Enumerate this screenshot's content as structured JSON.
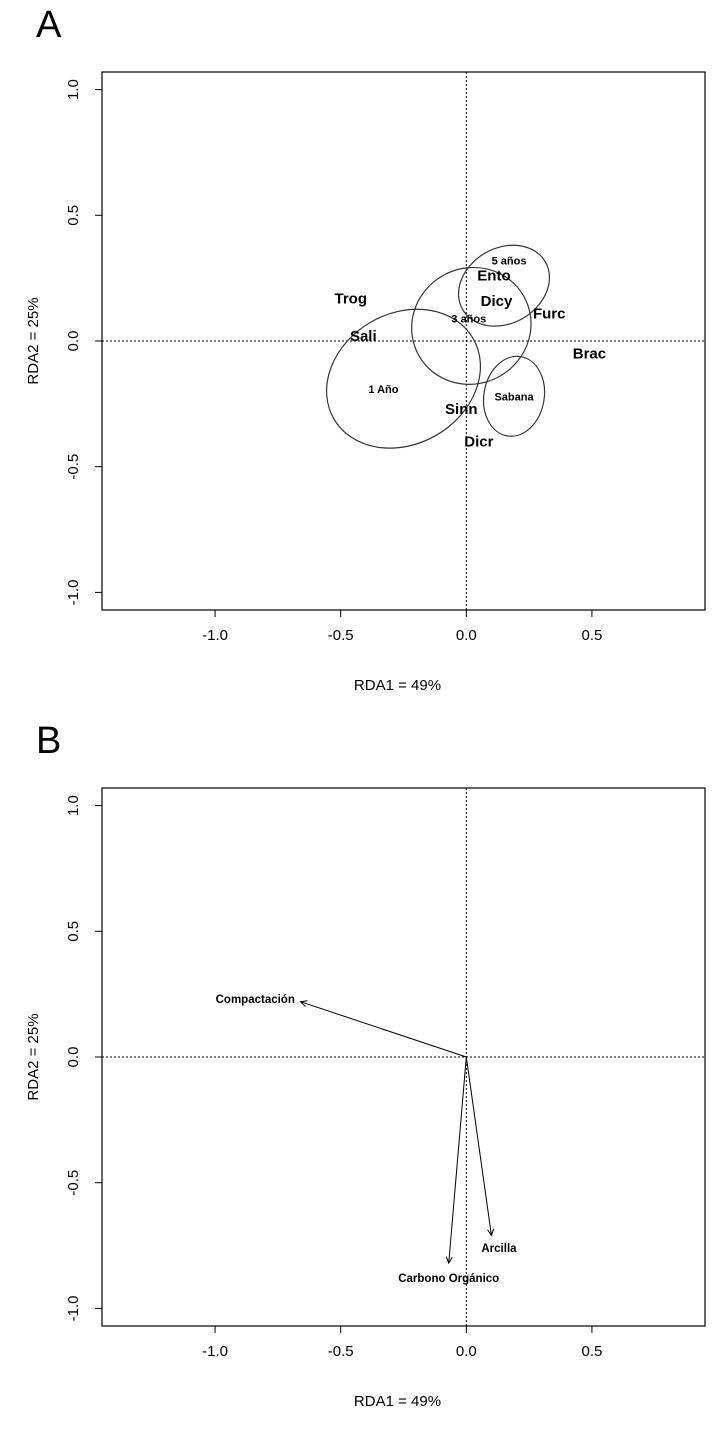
{
  "chart_data": [
    {
      "type": "scatter",
      "panel": "A",
      "panel_label": "A",
      "xlabel": "RDA1 = 49%",
      "ylabel": "RDA2 = 25%",
      "xlim": [
        -1.45,
        0.95
      ],
      "ylim": [
        -1.07,
        1.07
      ],
      "xticks": [
        -1.0,
        -0.5,
        0.0,
        0.5
      ],
      "xtick_labels": [
        "-1.0",
        "-0.5",
        "0.0",
        "0.5"
      ],
      "yticks": [
        -1.0,
        -0.5,
        0.0,
        0.5,
        1.0
      ],
      "ytick_labels": [
        "-1.0",
        "-0.5",
        "0.0",
        "0.5",
        "1.0"
      ],
      "reference_lines": {
        "x": 0,
        "y": 0,
        "style": "dotted"
      },
      "species": [
        {
          "label": "Trog",
          "x": -0.46,
          "y": 0.17
        },
        {
          "label": "Sali",
          "x": -0.41,
          "y": 0.02
        },
        {
          "label": "Ento",
          "x": 0.11,
          "y": 0.26
        },
        {
          "label": "Dicy",
          "x": 0.12,
          "y": 0.16
        },
        {
          "label": "Furc",
          "x": 0.33,
          "y": 0.11
        },
        {
          "label": "Brac",
          "x": 0.49,
          "y": -0.05
        },
        {
          "label": "Sinn",
          "x": -0.02,
          "y": -0.27
        },
        {
          "label": "Dicr",
          "x": 0.05,
          "y": -0.4
        }
      ],
      "groups": [
        {
          "label": "1 Año",
          "x": -0.33,
          "y": -0.19,
          "ellipse": {
            "cx": -0.25,
            "cy": -0.15,
            "rx": 0.32,
            "ry": 0.26,
            "rotation": -30
          }
        },
        {
          "label": "3 años",
          "x": 0.01,
          "y": 0.09,
          "ellipse": {
            "cx": 0.02,
            "cy": 0.06,
            "rx": 0.24,
            "ry": 0.23,
            "rotation": -30
          }
        },
        {
          "label": "5 años",
          "x": 0.17,
          "y": 0.32,
          "ellipse": {
            "cx": 0.15,
            "cy": 0.22,
            "rx": 0.19,
            "ry": 0.15,
            "rotation": -30
          }
        },
        {
          "label": "Sabana",
          "x": 0.19,
          "y": -0.22,
          "ellipse": {
            "cx": 0.19,
            "cy": -0.22,
            "rx": 0.16,
            "ry": 0.12,
            "rotation": -80
          }
        }
      ]
    },
    {
      "type": "scatter",
      "panel": "B",
      "panel_label": "B",
      "xlabel": "RDA1 = 49%",
      "ylabel": "RDA2 = 25%",
      "xlim": [
        -1.45,
        0.95
      ],
      "ylim": [
        -1.07,
        1.07
      ],
      "xticks": [
        -1.0,
        -0.5,
        0.0,
        0.5
      ],
      "xtick_labels": [
        "-1.0",
        "-0.5",
        "0.0",
        "0.5"
      ],
      "yticks": [
        -1.0,
        -0.5,
        0.0,
        0.5,
        1.0
      ],
      "ytick_labels": [
        "-1.0",
        "-0.5",
        "0.0",
        "0.5",
        "1.0"
      ],
      "reference_lines": {
        "x": 0,
        "y": 0,
        "style": "dotted"
      },
      "vectors": [
        {
          "label": "Compactación",
          "x": -0.66,
          "y": 0.22,
          "label_x": -0.84,
          "label_y": 0.23
        },
        {
          "label": "Arcilla",
          "x": 0.1,
          "y": -0.71,
          "label_x": 0.13,
          "label_y": -0.76
        },
        {
          "label": "Carbono Orgánico",
          "x": -0.07,
          "y": -0.82,
          "label_x": -0.07,
          "label_y": -0.88
        }
      ]
    }
  ]
}
